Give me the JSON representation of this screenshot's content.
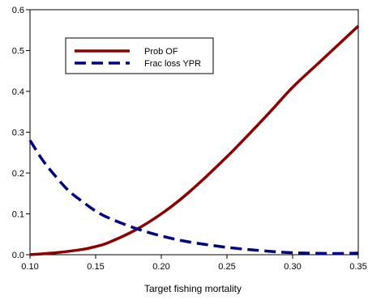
{
  "chart_data": {
    "type": "line",
    "title": "",
    "xlabel": "Target fishing mortality",
    "ylabel": "",
    "xlim": [
      0.1,
      0.35
    ],
    "ylim": [
      0,
      0.6
    ],
    "x_ticks": [
      0.1,
      0.15,
      0.2,
      0.25,
      0.3,
      0.35
    ],
    "x_tick_labels": [
      "0.10",
      "0.15",
      "0.20",
      "0.25",
      "0.30",
      "0.35"
    ],
    "y_ticks": [
      0.0,
      0.1,
      0.2,
      0.3,
      0.4,
      0.5,
      0.6
    ],
    "y_tick_labels": [
      "0.0",
      "0.1",
      "0.2",
      "0.3",
      "0.4",
      "0.5",
      "0.6"
    ],
    "grid": false,
    "legend_position": "upper-left",
    "series": [
      {
        "name": "Prob OF",
        "color": "#8b0000",
        "line_style": "solid",
        "x": [
          0.1,
          0.12,
          0.14,
          0.15,
          0.16,
          0.18,
          0.2,
          0.22,
          0.25,
          0.28,
          0.3,
          0.32,
          0.35
        ],
        "values": [
          0.0,
          0.005,
          0.013,
          0.02,
          0.03,
          0.06,
          0.1,
          0.15,
          0.24,
          0.34,
          0.41,
          0.47,
          0.56
        ]
      },
      {
        "name": "Frac loss YPR",
        "color": "#000080",
        "line_style": "dashed",
        "x": [
          0.1,
          0.11,
          0.12,
          0.13,
          0.14,
          0.15,
          0.16,
          0.18,
          0.2,
          0.22,
          0.25,
          0.28,
          0.3,
          0.33,
          0.35
        ],
        "values": [
          0.28,
          0.23,
          0.19,
          0.155,
          0.13,
          0.107,
          0.09,
          0.065,
          0.046,
          0.032,
          0.018,
          0.009,
          0.005,
          0.003,
          0.004
        ]
      }
    ]
  }
}
